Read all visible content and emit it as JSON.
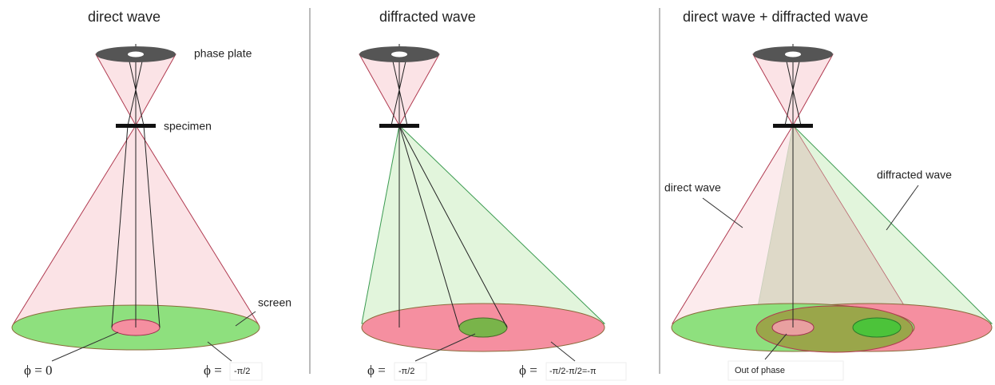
{
  "panels": [
    {
      "title": "direct wave",
      "labels": [
        "phase plate",
        "specimen",
        "screen"
      ],
      "phi_left": "ϕ = 0",
      "phi_right": "ϕ =",
      "phi_right_value": "-π/2"
    },
    {
      "title": "diffracted wave",
      "phi_left": "ϕ =",
      "phi_left_value": "-π/2",
      "phi_right": "ϕ =",
      "phi_right_value": "-π/2-π/2=-π"
    },
    {
      "title": "direct wave + diffracted wave",
      "labels": [
        "direct wave",
        "diffracted wave",
        "Out of phase"
      ]
    }
  ]
}
